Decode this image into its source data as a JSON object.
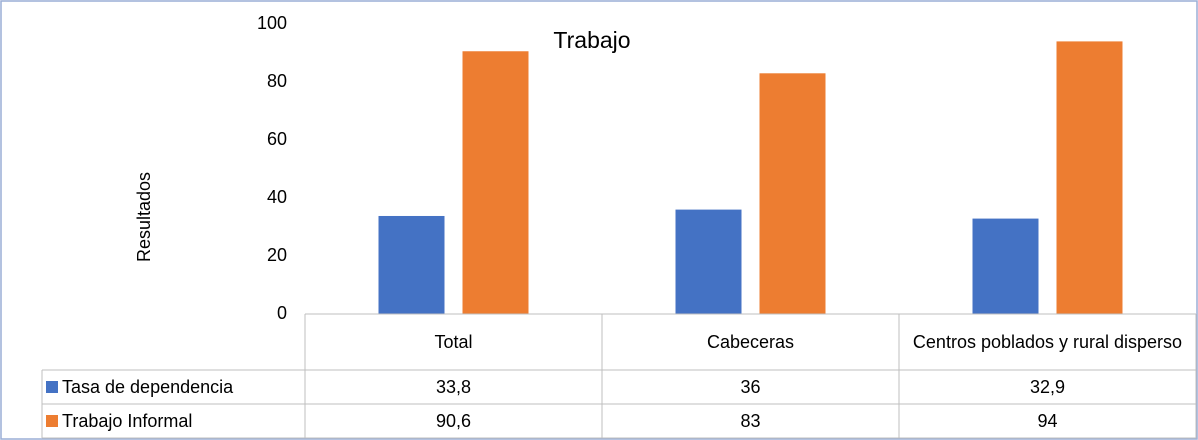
{
  "chart_data": {
    "type": "bar",
    "title": "Trabajo",
    "y_label": "Resultados",
    "categories": [
      "Total",
      "Cabeceras",
      "Centros poblados y rural disperso"
    ],
    "series": [
      {
        "name": "Tasa de dependencia",
        "color": "#4472c4",
        "values": [
          33.8,
          36,
          32.9
        ],
        "value_labels": [
          "33,8",
          "36",
          "32,9"
        ]
      },
      {
        "name": "Trabajo Informal",
        "color": "#ed7d31",
        "values": [
          90.6,
          83,
          94
        ],
        "value_labels": [
          "90,6",
          "83",
          "94"
        ]
      }
    ],
    "ylim": [
      0,
      100
    ],
    "yticks": [
      0,
      20,
      40,
      60,
      80,
      100
    ],
    "grid": false
  }
}
